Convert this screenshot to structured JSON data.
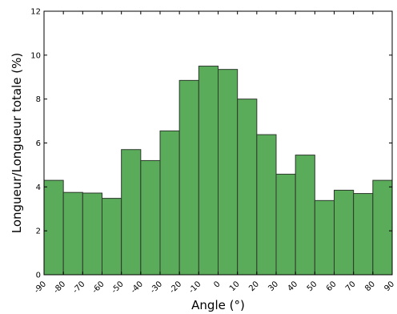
{
  "chart_data": {
    "type": "bar",
    "title": "",
    "xlabel": "Angle (°)",
    "ylabel": "Longueur/Longueur totale (%)",
    "xlim": [
      -90,
      90
    ],
    "ylim": [
      0,
      12
    ],
    "bin_edges": [
      -90,
      -80,
      -70,
      -60,
      -50,
      -40,
      -30,
      -20,
      -10,
      0,
      10,
      20,
      30,
      40,
      50,
      60,
      70,
      80,
      90
    ],
    "values": [
      4.3,
      3.75,
      3.72,
      3.48,
      5.7,
      5.2,
      6.55,
      8.85,
      9.5,
      9.35,
      8.0,
      6.38,
      4.58,
      5.45,
      3.38,
      3.85,
      3.7,
      4.3
    ],
    "xticks": [
      "-90",
      "-80",
      "-70",
      "-60",
      "-50",
      "-40",
      "-30",
      "-20",
      "-10",
      "0",
      "10",
      "20",
      "30",
      "40",
      "50",
      "60",
      "70",
      "80",
      "90"
    ],
    "yticks": [
      "0",
      "2",
      "4",
      "6",
      "8",
      "10",
      "12"
    ],
    "grid": false,
    "bar_color": "#5aab5a",
    "edge_color": "#2d3a2d"
  }
}
